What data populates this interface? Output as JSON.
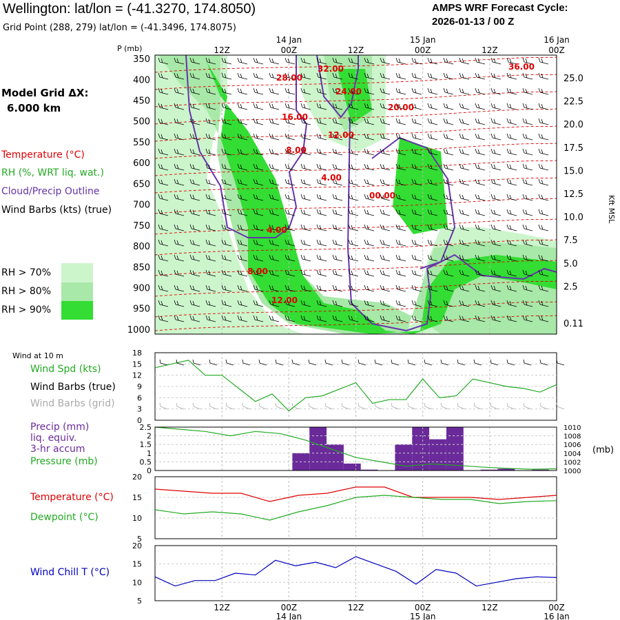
{
  "header": {
    "title": "Wellington:  lat/lon = (-41.3270, 174.8050)",
    "grid_point": "Grid Point (288, 279) lat/lon = (-41.3496, 174.8075)",
    "cycle_line1": "AMPS WRF Forecast Cycle:",
    "cycle_line2": "2026-01-13 / 00  Z"
  },
  "left_labels": {
    "model_grid_line1": "Model Grid ΔX:",
    "model_grid_line2": "6.000 km",
    "temperature": "Temperature (°C)",
    "rh": "RH (%, WRT liq. wat.)",
    "cloud": "Cloud/Precip Outline",
    "wind_barbs": "Wind Barbs (kts) (true)",
    "rh_levels": [
      "RH > 70%",
      "RH > 80%",
      "RH > 90%"
    ],
    "wind_at_10m": "Wind at 10 m",
    "wind_spd": "Wind Spd (kts)",
    "wind_barbs_true": "Wind Barbs (true)",
    "wind_barbs_grid": "Wind Barbs (grid)",
    "precip_lines": [
      "Precip (mm)",
      "liq. equiv.",
      "3-hr accum"
    ],
    "pressure": "Pressure (mb)",
    "temperature2": "Temperature (°C)",
    "dewpoint": "Dewpoint (°C)",
    "wind_chill": "Wind Chill T (°C)"
  },
  "colors": {
    "temperature": "#dd0000",
    "rh": "#22aa22",
    "cloud": "#6633aa",
    "rh70": "#ccf5cc",
    "rh80": "#a8e8a8",
    "rh90": "#33dd33",
    "precip_bar": "#6a2a9a",
    "wind_chill": "#0000bb",
    "grid_barb": "#aaaaaa"
  },
  "chart_data": [
    {
      "type": "heatmap",
      "name": "cross-section",
      "y_axis_label": "P (mb)",
      "y_ticks": [
        "350",
        "400",
        "450",
        "500",
        "550",
        "600",
        "650",
        "700",
        "750",
        "800",
        "850",
        "900",
        "950",
        "1000"
      ],
      "right_ticks": [
        "25.0",
        "22.5",
        "20.0",
        "17.5",
        "15.0",
        "12.5",
        "10.0",
        "7.5",
        "5.0",
        "2.5",
        "0.11"
      ],
      "right_axis_label": "Kft MSL",
      "x_top_ticks": [
        "12Z",
        "00Z",
        "12Z",
        "00Z",
        "12Z",
        "00Z"
      ],
      "x_top_dates": [
        "14 Jan",
        "15 Jan",
        "16 Jan"
      ],
      "temperature_labels": [
        "36.00",
        "32.00",
        "28.00",
        "24.00",
        "20.00",
        "16.00",
        "12.00",
        "8.00",
        "4.00",
        "00.00",
        "4.00",
        "8.00",
        "12.00"
      ]
    },
    {
      "type": "line",
      "name": "wind speed",
      "ylim": [
        0,
        18
      ],
      "y_ticks": [
        "18",
        "15",
        "12",
        "9",
        "6",
        "3",
        "0"
      ],
      "x_hours": [
        0,
        6,
        9,
        12,
        18,
        21,
        24,
        27,
        30,
        36,
        39,
        42,
        45,
        48,
        51,
        54,
        57,
        60,
        63,
        66,
        69,
        72
      ],
      "values": [
        14,
        16,
        12,
        12,
        5,
        7,
        2.5,
        6,
        6.5,
        10,
        4.5,
        5.5,
        5.5,
        11,
        6,
        6.5,
        11,
        10,
        9,
        8.5,
        7.5,
        9.5
      ],
      "series_name": "Wind Spd (kts)"
    },
    {
      "type": "bar",
      "name": "precip and pressure",
      "ylim": [
        0,
        2.5
      ],
      "y_ticks": [
        "2.5",
        "2",
        "1.5",
        "1",
        "0.5",
        "0"
      ],
      "right_ticks": [
        "1010",
        "1008",
        "1006",
        "1004",
        "1002",
        "1000"
      ],
      "right_label": "(mb)",
      "precip_bars": [
        0,
        0,
        0,
        0,
        1.0,
        2.5,
        1.5,
        0.4,
        0.05,
        0,
        1.5,
        2.5,
        1.8,
        2.5,
        0,
        0.05,
        0.1,
        0.02,
        0.05
      ],
      "pressure_values": [
        1010,
        1009.5,
        1009,
        1008,
        1009,
        1008.5,
        1007,
        1005,
        1003,
        1002,
        1001,
        1001.5,
        1001.2,
        1000.8,
        1000.5,
        1000.3,
        1000.4
      ]
    },
    {
      "type": "line",
      "name": "temperature and dewpoint",
      "ylim": [
        5,
        20
      ],
      "y_ticks": [
        "20",
        "15",
        "10",
        "5"
      ],
      "temperature": [
        17,
        16.5,
        16,
        16,
        14,
        15.5,
        16,
        17.5,
        17.5,
        15,
        15,
        15,
        14.5,
        15,
        15.5
      ],
      "dewpoint": [
        12,
        11,
        11.5,
        11,
        9.5,
        11.5,
        13,
        15,
        15.5,
        15,
        14.5,
        14.5,
        13.5,
        14,
        14.2
      ]
    },
    {
      "type": "line",
      "name": "wind chill",
      "ylim": [
        5,
        20
      ],
      "y_ticks": [
        "20",
        "15",
        "10",
        "5"
      ],
      "x_bottom_ticks": [
        "12Z",
        "00Z",
        "12Z",
        "00Z",
        "12Z",
        "00Z"
      ],
      "x_bottom_dates": [
        "14 Jan",
        "15 Jan",
        "16 Jan"
      ],
      "values": [
        11.5,
        9,
        10.5,
        10.5,
        12.5,
        12,
        16,
        14.5,
        15.5,
        14,
        17,
        15,
        13,
        9.5,
        13.5,
        12.5,
        9,
        10,
        11,
        11.5,
        11.3
      ]
    }
  ]
}
